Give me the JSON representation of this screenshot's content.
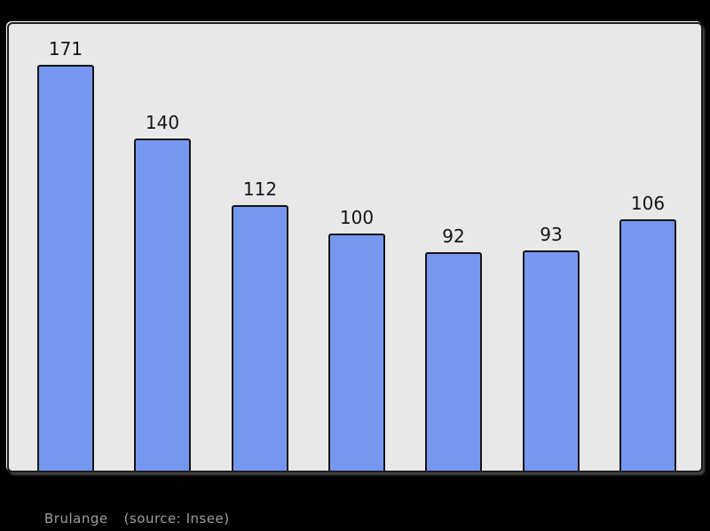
{
  "page": {
    "background": "#000000"
  },
  "chart_data": {
    "type": "bar",
    "values": [
      171,
      140,
      112,
      100,
      92,
      93,
      106
    ],
    "data_labels": [
      "171",
      "140",
      "112",
      "100",
      "92",
      "93",
      "106"
    ],
    "categories": [
      "",
      "",
      "",
      "",
      "",
      "",
      ""
    ],
    "title": "",
    "xlabel": "",
    "ylabel": "",
    "ylim": [
      0,
      188
    ],
    "grid": false,
    "legend": false,
    "axes_visible": false,
    "colors": {
      "bar_fill": "#7697f0",
      "bar_border": "#151515",
      "panel_background": "#e8e8e8",
      "panel_border": "#1c1c1c",
      "value_label": "#141414",
      "caption_text": "#9e9e9e"
    }
  },
  "caption": {
    "commune": "Brulange",
    "source": "(source: Insee)"
  }
}
